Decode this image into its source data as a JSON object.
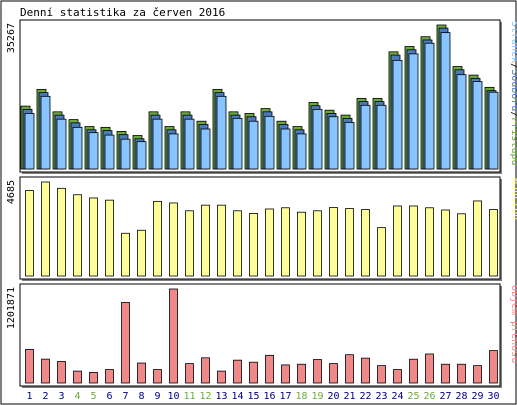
{
  "chart_data": [
    {
      "type": "bar",
      "title": "Denní statistika za červen 2016",
      "ymax_label": "35267",
      "ylim": [
        0,
        35267
      ],
      "grid": false,
      "legend": "right-vertical",
      "categories": [
        "1",
        "2",
        "3",
        "4",
        "5",
        "6",
        "7",
        "8",
        "9",
        "10",
        "11",
        "12",
        "13",
        "14",
        "15",
        "16",
        "17",
        "18",
        "19",
        "20",
        "21",
        "22",
        "23",
        "24",
        "25",
        "26",
        "27",
        "28",
        "29",
        "30"
      ],
      "series": [
        {
          "name": "Přístupů",
          "color": "#6caa3c",
          "values": [
            15400,
            19500,
            14000,
            12100,
            10400,
            10200,
            9200,
            8200,
            14000,
            10400,
            14000,
            11700,
            19500,
            14000,
            13600,
            14800,
            11700,
            10400,
            16300,
            14400,
            13200,
            17300,
            17300,
            28700,
            30000,
            32400,
            35267,
            25100,
            23000,
            20000
          ]
        },
        {
          "name": "Souborů",
          "color": "#4a7ab8",
          "values": [
            14600,
            18700,
            13200,
            11300,
            9600,
            9400,
            8400,
            7400,
            13200,
            9600,
            13200,
            10900,
            18700,
            13200,
            12800,
            14000,
            10900,
            9600,
            15500,
            13600,
            12400,
            16500,
            16500,
            27900,
            29200,
            31600,
            34500,
            24300,
            22200,
            19200
          ]
        },
        {
          "name": "Stránek",
          "color": "#88c4ff",
          "values": [
            13600,
            17800,
            12200,
            10200,
            8900,
            8300,
            7300,
            6700,
            12200,
            8600,
            12200,
            9800,
            17800,
            12400,
            11700,
            12900,
            9800,
            8600,
            14600,
            12800,
            11400,
            15600,
            15600,
            26600,
            28200,
            30800,
            33400,
            23100,
            21400,
            18800
          ]
        }
      ]
    },
    {
      "type": "bar",
      "ymax_label": "4685",
      "ylim": [
        0,
        4685
      ],
      "categories": [
        "1",
        "2",
        "3",
        "4",
        "5",
        "6",
        "7",
        "8",
        "9",
        "10",
        "11",
        "12",
        "13",
        "14",
        "15",
        "16",
        "17",
        "18",
        "19",
        "20",
        "21",
        "22",
        "23",
        "24",
        "25",
        "26",
        "27",
        "28",
        "29",
        "30"
      ],
      "series": [
        {
          "name": "Návštěv",
          "color": "#ffff99",
          "values": [
            4260,
            4685,
            4370,
            4050,
            3890,
            3780,
            2130,
            2280,
            3720,
            3640,
            3250,
            3530,
            3530,
            3250,
            3120,
            3340,
            3400,
            3180,
            3250,
            3410,
            3360,
            3310,
            2410,
            3490,
            3490,
            3400,
            3290,
            3100,
            3740,
            3310
          ]
        }
      ]
    },
    {
      "type": "bar",
      "ymax_label": "1201871",
      "ylim": [
        0,
        1201871
      ],
      "categories": [
        "1",
        "2",
        "3",
        "4",
        "5",
        "6",
        "7",
        "8",
        "9",
        "10",
        "11",
        "12",
        "13",
        "14",
        "15",
        "16",
        "17",
        "18",
        "19",
        "20",
        "21",
        "22",
        "23",
        "24",
        "25",
        "26",
        "27",
        "28",
        "29",
        "30"
      ],
      "series": [
        {
          "name": "Objem přenosu",
          "color": "#f08a8a",
          "values": [
            430000,
            305000,
            275000,
            152000,
            135000,
            172000,
            1030000,
            255000,
            172000,
            1201871,
            248000,
            322000,
            152000,
            292000,
            266000,
            354000,
            231000,
            240000,
            300000,
            248000,
            362000,
            318000,
            222000,
            172000,
            304000,
            371000,
            240000,
            240000,
            222000,
            414000
          ]
        }
      ]
    }
  ],
  "x_labels": {
    "weekend_color": "#6caa3c",
    "weekend_days": [
      "4",
      "5",
      "11",
      "12",
      "18",
      "19",
      "25",
      "26"
    ],
    "normal_color": "#000080"
  }
}
